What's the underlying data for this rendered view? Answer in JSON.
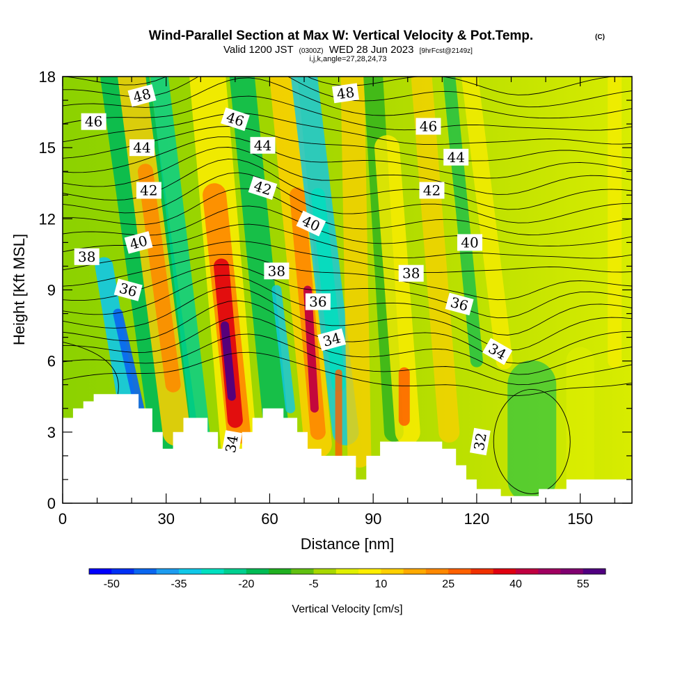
{
  "header": {
    "title": "Wind-Parallel Section at Max W: Vertical Velocity & Pot.Temp.",
    "copyright": "(C)",
    "valid_prefix": "Valid 1200 JST",
    "utc": "(0300Z)",
    "valid_date": "WED 28 Jun 2023",
    "forecast": "[9hrFcst@2149z]",
    "indices": "i,j,k,angle=27,28,24,73"
  },
  "chart_data": {
    "type": "heatmap",
    "xlabel": "Distance [nm]",
    "ylabel": "Height [Kft MSL]",
    "xlim": [
      0,
      165
    ],
    "ylim": [
      0,
      18
    ],
    "x_ticks": [
      0,
      30,
      60,
      90,
      120,
      150
    ],
    "y_ticks": [
      0,
      3,
      6,
      9,
      12,
      15,
      18
    ],
    "colorbar": {
      "title": "Vertical Velocity [cm/s]",
      "labels": [
        -50,
        -35,
        -20,
        -5,
        10,
        25,
        40,
        55
      ],
      "colors": [
        "#0000ff",
        "#0030f5",
        "#0a66f0",
        "#1c9cf0",
        "#10c8e8",
        "#00e0c0",
        "#00d090",
        "#00bb55",
        "#20b020",
        "#60c010",
        "#a8d800",
        "#e0f000",
        "#ffee00",
        "#ffd000",
        "#ffaa00",
        "#ff8800",
        "#ff6000",
        "#f03000",
        "#e00010",
        "#c00040",
        "#a00060",
        "#800070",
        "#500080"
      ]
    },
    "theta_labels": [
      {
        "value": 48,
        "x": 23,
        "y": 17.2,
        "angle": -15
      },
      {
        "value": 48,
        "x": 82,
        "y": 17.3,
        "angle": -8
      },
      {
        "value": 46,
        "x": 9,
        "y": 16.1,
        "angle": 0
      },
      {
        "value": 46,
        "x": 50,
        "y": 16.2,
        "angle": 18
      },
      {
        "value": 46,
        "x": 106,
        "y": 15.9,
        "angle": 0
      },
      {
        "value": 44,
        "x": 23,
        "y": 15.0,
        "angle": 0
      },
      {
        "value": 44,
        "x": 58,
        "y": 15.1,
        "angle": 0
      },
      {
        "value": 44,
        "x": 114,
        "y": 14.6,
        "angle": 0
      },
      {
        "value": 42,
        "x": 25,
        "y": 13.2,
        "angle": 0
      },
      {
        "value": 42,
        "x": 58,
        "y": 13.3,
        "angle": 18
      },
      {
        "value": 42,
        "x": 107,
        "y": 13.2,
        "angle": 0
      },
      {
        "value": 40,
        "x": 22,
        "y": 11.0,
        "angle": -15
      },
      {
        "value": 40,
        "x": 72,
        "y": 11.8,
        "angle": 25
      },
      {
        "value": 40,
        "x": 118,
        "y": 11.0,
        "angle": 0
      },
      {
        "value": 38,
        "x": 7,
        "y": 10.4,
        "angle": 0
      },
      {
        "value": 38,
        "x": 62,
        "y": 9.8,
        "angle": 0
      },
      {
        "value": 38,
        "x": 101,
        "y": 9.7,
        "angle": 0
      },
      {
        "value": 36,
        "x": 19,
        "y": 9.0,
        "angle": 15
      },
      {
        "value": 36,
        "x": 74,
        "y": 8.5,
        "angle": 0
      },
      {
        "value": 36,
        "x": 115,
        "y": 8.4,
        "angle": 15
      },
      {
        "value": 34,
        "x": 78,
        "y": 6.9,
        "angle": -15
      },
      {
        "value": 34,
        "x": 126,
        "y": 6.4,
        "angle": 30
      },
      {
        "value": 34,
        "x": 49,
        "y": 2.5,
        "angle": -80
      },
      {
        "value": 32,
        "x": 121,
        "y": 2.6,
        "angle": -80
      }
    ],
    "terrain_kft": [
      [
        0,
        3.6
      ],
      [
        3,
        3.6
      ],
      [
        3,
        4.0
      ],
      [
        6,
        4.0
      ],
      [
        6,
        4.3
      ],
      [
        9,
        4.3
      ],
      [
        9,
        4.6
      ],
      [
        22,
        4.6
      ],
      [
        22,
        4.0
      ],
      [
        26,
        4.0
      ],
      [
        26,
        3.0
      ],
      [
        29,
        3.0
      ],
      [
        29,
        2.3
      ],
      [
        32,
        2.3
      ],
      [
        32,
        3.0
      ],
      [
        35,
        3.0
      ],
      [
        35,
        3.6
      ],
      [
        42,
        3.6
      ],
      [
        42,
        3.0
      ],
      [
        45,
        3.0
      ],
      [
        45,
        2.3
      ],
      [
        52,
        2.3
      ],
      [
        52,
        3.0
      ],
      [
        55,
        3.0
      ],
      [
        55,
        3.6
      ],
      [
        58,
        3.6
      ],
      [
        58,
        4.0
      ],
      [
        64,
        4.0
      ],
      [
        64,
        3.6
      ],
      [
        68,
        3.6
      ],
      [
        68,
        3.0
      ],
      [
        71,
        3.0
      ],
      [
        71,
        2.3
      ],
      [
        75,
        2.3
      ],
      [
        75,
        2.0
      ],
      [
        85,
        2.0
      ],
      [
        85,
        1.0
      ],
      [
        88,
        1.0
      ],
      [
        88,
        2.0
      ],
      [
        92,
        2.0
      ],
      [
        92,
        2.6
      ],
      [
        110,
        2.6
      ],
      [
        110,
        2.3
      ],
      [
        114,
        2.3
      ],
      [
        114,
        1.6
      ],
      [
        117,
        1.6
      ],
      [
        117,
        1.0
      ],
      [
        120,
        1.0
      ],
      [
        120,
        0.6
      ],
      [
        127,
        0.6
      ],
      [
        127,
        0.3
      ],
      [
        138,
        0.3
      ],
      [
        138,
        0.6
      ],
      [
        146,
        0.6
      ],
      [
        146,
        1.0
      ],
      [
        165,
        1.0
      ]
    ]
  }
}
